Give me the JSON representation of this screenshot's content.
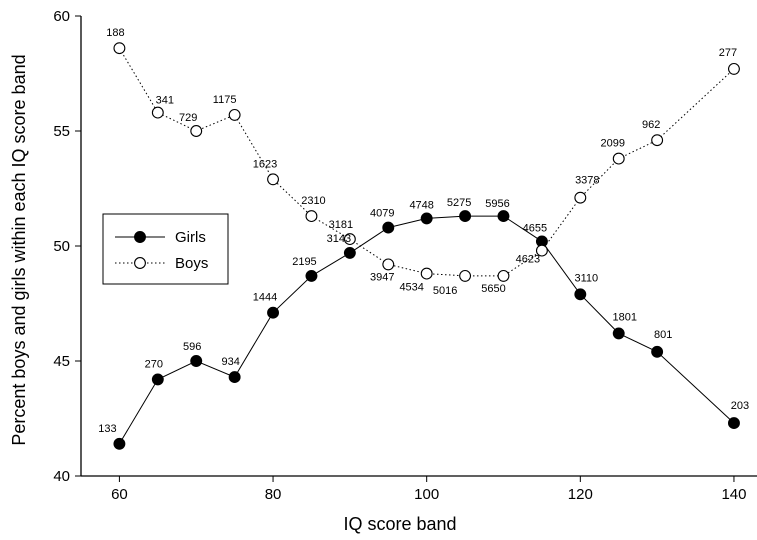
{
  "chart_data": {
    "type": "line",
    "xlabel": "IQ score band",
    "ylabel": "Percent boys and girls within each IQ score band",
    "xlim": [
      55,
      143
    ],
    "ylim": [
      40,
      60
    ],
    "xticks": [
      "60",
      "80",
      "100",
      "120",
      "140"
    ],
    "yticks": [
      "40",
      "45",
      "50",
      "55",
      "60"
    ],
    "legend_position": "left-middle",
    "series": [
      {
        "name": "Girls",
        "marker": "filled-circle",
        "line": "solid",
        "color": "#000000",
        "x": [
          60,
          65,
          70,
          75,
          80,
          85,
          90,
          95,
          100,
          105,
          110,
          115,
          120,
          125,
          130,
          140
        ],
        "y": [
          41.4,
          44.2,
          45.0,
          44.3,
          47.1,
          48.7,
          49.7,
          50.8,
          51.2,
          51.3,
          51.3,
          50.2,
          47.9,
          46.2,
          45.4,
          42.3
        ],
        "labels": [
          "133",
          "270",
          "596",
          "934",
          "1444",
          "2195",
          "3143",
          "4079",
          "4748",
          "5275",
          "5956",
          "4655",
          "3110",
          "1801",
          "801",
          "203"
        ]
      },
      {
        "name": "Boys",
        "marker": "open-circle",
        "line": "dotted",
        "color": "#000000",
        "x": [
          60,
          65,
          70,
          75,
          80,
          85,
          90,
          95,
          100,
          105,
          110,
          115,
          120,
          125,
          130,
          140
        ],
        "y": [
          58.6,
          55.8,
          55.0,
          55.7,
          52.9,
          51.3,
          50.3,
          49.2,
          48.8,
          48.7,
          48.7,
          49.8,
          52.1,
          53.8,
          54.6,
          57.7
        ],
        "labels": [
          "188",
          "341",
          "729",
          "1175",
          "1623",
          "2310",
          "3181",
          "3947",
          "4534",
          "5016",
          "5650",
          "4623",
          "3378",
          "2099",
          "962",
          "277"
        ]
      }
    ]
  }
}
